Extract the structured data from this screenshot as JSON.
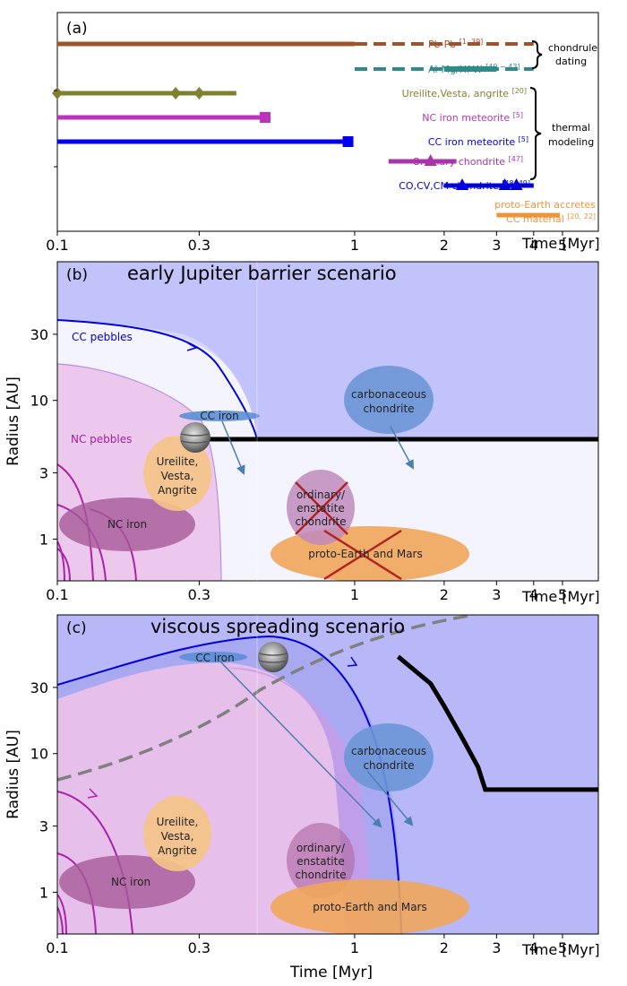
{
  "chart_data": [
    {
      "panel": "(a)",
      "type": "timeline",
      "x_scale": "log",
      "xlim": [
        0.1,
        6.6
      ],
      "x_ticks": [
        "0.1",
        "0.3",
        "1",
        "2",
        "3",
        "4",
        "5"
      ],
      "x_tick_values": [
        0.1,
        0.3,
        1,
        2,
        3,
        4,
        5
      ],
      "xlabel": "Time [Myr]",
      "groups": [
        {
          "label": "chondrule dating",
          "label_lines": [
            "chondrule",
            "dating"
          ]
        },
        {
          "label": "thermal modeling",
          "label_lines": [
            "thermal",
            "modeling"
          ]
        }
      ],
      "rows": [
        {
          "label": "Pb-Pb",
          "ref": "[1, 39]",
          "color": "#a0522d",
          "solid": [
            [
              0.1,
              1.0
            ]
          ],
          "dashed": [
            [
              1.0,
              4.0
            ]
          ],
          "markers": [],
          "marker": "none"
        },
        {
          "label": "Al-Mg/Hf-W",
          "ref": "[40 − 43]",
          "color": "#2e8b8b",
          "solid": [
            [
              2.0,
              3.0
            ]
          ],
          "dashed": [
            [
              1.0,
              4.0
            ]
          ],
          "markers": [],
          "marker": "none"
        },
        {
          "label": "Ureilite,Vesta, angrite",
          "ref": "[20]",
          "color": "#808033",
          "solid": [
            [
              0.1,
              0.4
            ]
          ],
          "dashed": [],
          "markers": [
            0.1,
            0.25,
            0.3
          ],
          "marker": "diamond"
        },
        {
          "label": "NC iron meteorite",
          "ref": "[5]",
          "color": "#bb33bb",
          "solid": [
            [
              0.1,
              0.5
            ]
          ],
          "dashed": [],
          "markers": [
            0.5
          ],
          "marker": "square"
        },
        {
          "label": "CC iron meteorite",
          "ref": "[5]",
          "color": "#0000ee",
          "solid": [
            [
              0.1,
              0.95
            ]
          ],
          "dashed": [],
          "markers": [
            0.95
          ],
          "marker": "square"
        },
        {
          "label": "Ordinary chondrite",
          "ref": "[47]",
          "color": "#aa33aa",
          "solid": [
            [
              1.3,
              2.2
            ]
          ],
          "dashed": [],
          "markers": [
            1.8
          ],
          "marker": "triangle"
        },
        {
          "label": "CO,CV,CM chondrite",
          "ref": "[48, 49]",
          "color": "#0000dd",
          "solid": [
            [
              2.0,
              4.0
            ]
          ],
          "dashed": [],
          "markers": [
            2.3,
            3.2,
            3.5
          ],
          "marker": "triangle"
        },
        {
          "label": "proto-Earth accretes",
          "label2": "CC material",
          "ref": "[20, 22]",
          "color": "#f0943a",
          "solid": [
            [
              3.0,
              4.9
            ]
          ],
          "dashed": [],
          "markers": [],
          "marker": "none"
        }
      ]
    },
    {
      "panel": "(b)",
      "title": "early Jupiter  barrier scenario",
      "type": "diagram",
      "x_scale": "log",
      "y_scale": "log",
      "xlim": [
        0.1,
        6.6
      ],
      "ylim": [
        0.5,
        100
      ],
      "x_ticks": [
        "0.1",
        "0.3",
        "1",
        "2",
        "3",
        "4",
        "5"
      ],
      "x_tick_values": [
        0.1,
        0.3,
        1,
        2,
        3,
        4,
        5
      ],
      "y_ticks": [
        "1",
        "3",
        "10",
        "30"
      ],
      "y_tick_values": [
        1,
        3,
        10,
        30
      ],
      "xlabel": "Time [Myr]",
      "ylabel": "Radius [AU]",
      "region_labels": [
        "CC pebbles",
        "NC pebbles"
      ],
      "reservoirs": [
        "CC iron",
        "carbonaceous chondrite",
        "Ureilite, Vesta, Angrite",
        "NC iron",
        "ordinary/ enstatite chondrite",
        "proto-Earth and Mars"
      ],
      "jupiter_orbit": {
        "t": [
          0.4,
          6.6
        ],
        "r": [
          5.2,
          5.2
        ]
      },
      "crossed_out": [
        "ordinary/ enstatite chondrite",
        "proto-Earth and Mars"
      ]
    },
    {
      "panel": "(c)",
      "title": "viscous spreading  scenario",
      "type": "diagram",
      "x_scale": "log",
      "y_scale": "log",
      "xlim": [
        0.1,
        6.6
      ],
      "ylim": [
        0.5,
        100
      ],
      "x_ticks": [
        "0.1",
        "0.3",
        "1",
        "2",
        "3",
        "4",
        "5"
      ],
      "x_tick_values": [
        0.1,
        0.3,
        1,
        2,
        3,
        4,
        5
      ],
      "y_ticks": [
        "1",
        "3",
        "10",
        "30"
      ],
      "y_tick_values": [
        1,
        3,
        10,
        30
      ],
      "xlabel": "Time [Myr]",
      "ylabel": "Radius [AU]",
      "reservoirs": [
        "CC iron",
        "carbonaceous chondrite",
        "Ureilite, Vesta, Angrite",
        "NC iron",
        "ordinary/ enstatite chondrite",
        "proto-Earth and Mars"
      ],
      "jupiter_path": {
        "t": [
          1.4,
          1.8,
          2.0,
          2.3,
          2.6,
          2.75,
          3.2,
          6.6
        ],
        "r": [
          50,
          32,
          22,
          13,
          8,
          5.5,
          5.5,
          5.5
        ]
      }
    }
  ]
}
